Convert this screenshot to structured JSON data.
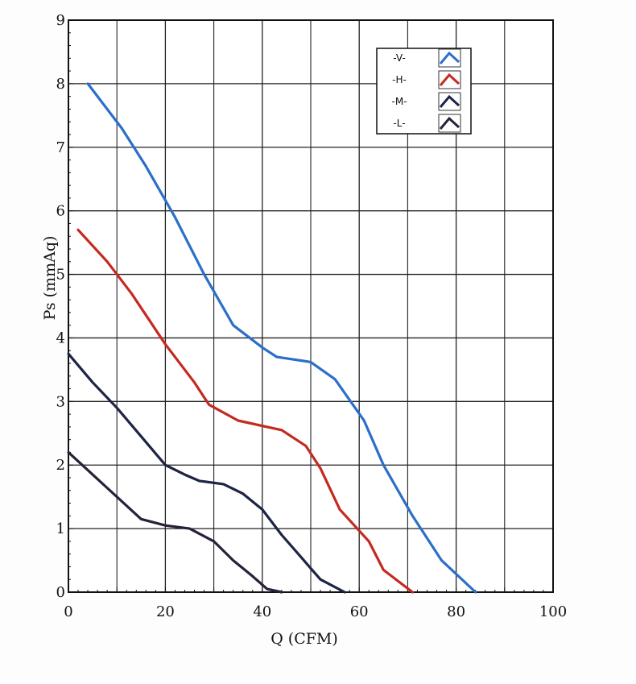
{
  "chart_data": {
    "type": "line",
    "title": "",
    "xlabel": "Q (CFM)",
    "ylabel": "Ps (mmAq)",
    "xlim": [
      0,
      100
    ],
    "ylim": [
      0,
      9
    ],
    "x_ticks": [
      0,
      20,
      40,
      60,
      80,
      100
    ],
    "y_ticks": [
      0,
      1,
      2,
      3,
      4,
      5,
      6,
      7,
      8,
      9
    ],
    "grid": true,
    "legend_position": "top-right",
    "series": [
      {
        "name": "-V-",
        "color": "#2b6fc9",
        "points": [
          [
            4,
            8.0
          ],
          [
            11,
            7.3
          ],
          [
            16,
            6.7
          ],
          [
            22,
            5.9
          ],
          [
            28,
            5.0
          ],
          [
            34,
            4.2
          ],
          [
            40,
            3.85
          ],
          [
            43,
            3.7
          ],
          [
            50,
            3.62
          ],
          [
            55,
            3.35
          ],
          [
            61,
            2.7
          ],
          [
            65,
            2.0
          ],
          [
            71,
            1.2
          ],
          [
            77,
            0.5
          ],
          [
            84,
            0.0
          ]
        ]
      },
      {
        "name": "-H-",
        "color": "#c42a20",
        "points": [
          [
            2,
            5.7
          ],
          [
            8,
            5.2
          ],
          [
            13,
            4.7
          ],
          [
            20,
            3.9
          ],
          [
            26,
            3.3
          ],
          [
            29,
            2.95
          ],
          [
            35,
            2.7
          ],
          [
            41,
            2.6
          ],
          [
            44,
            2.55
          ],
          [
            49,
            2.3
          ],
          [
            52,
            1.95
          ],
          [
            56,
            1.3
          ],
          [
            62,
            0.8
          ],
          [
            65,
            0.35
          ],
          [
            71,
            0.0
          ]
        ]
      },
      {
        "name": "-M-",
        "color": "#1d2446",
        "points": [
          [
            0,
            3.75
          ],
          [
            5,
            3.3
          ],
          [
            10,
            2.9
          ],
          [
            15,
            2.45
          ],
          [
            20,
            2.0
          ],
          [
            24,
            1.85
          ],
          [
            27,
            1.75
          ],
          [
            32,
            1.7
          ],
          [
            36,
            1.55
          ],
          [
            40,
            1.3
          ],
          [
            44,
            0.9
          ],
          [
            48,
            0.55
          ],
          [
            52,
            0.2
          ],
          [
            57,
            0.0
          ]
        ]
      },
      {
        "name": "-L-",
        "color": "#2a2038",
        "points": [
          [
            0,
            2.2
          ],
          [
            5,
            1.85
          ],
          [
            10,
            1.5
          ],
          [
            15,
            1.15
          ],
          [
            20,
            1.05
          ],
          [
            25,
            1.0
          ],
          [
            30,
            0.8
          ],
          [
            34,
            0.5
          ],
          [
            38,
            0.25
          ],
          [
            41,
            0.05
          ],
          [
            44,
            0.0
          ]
        ]
      }
    ]
  }
}
